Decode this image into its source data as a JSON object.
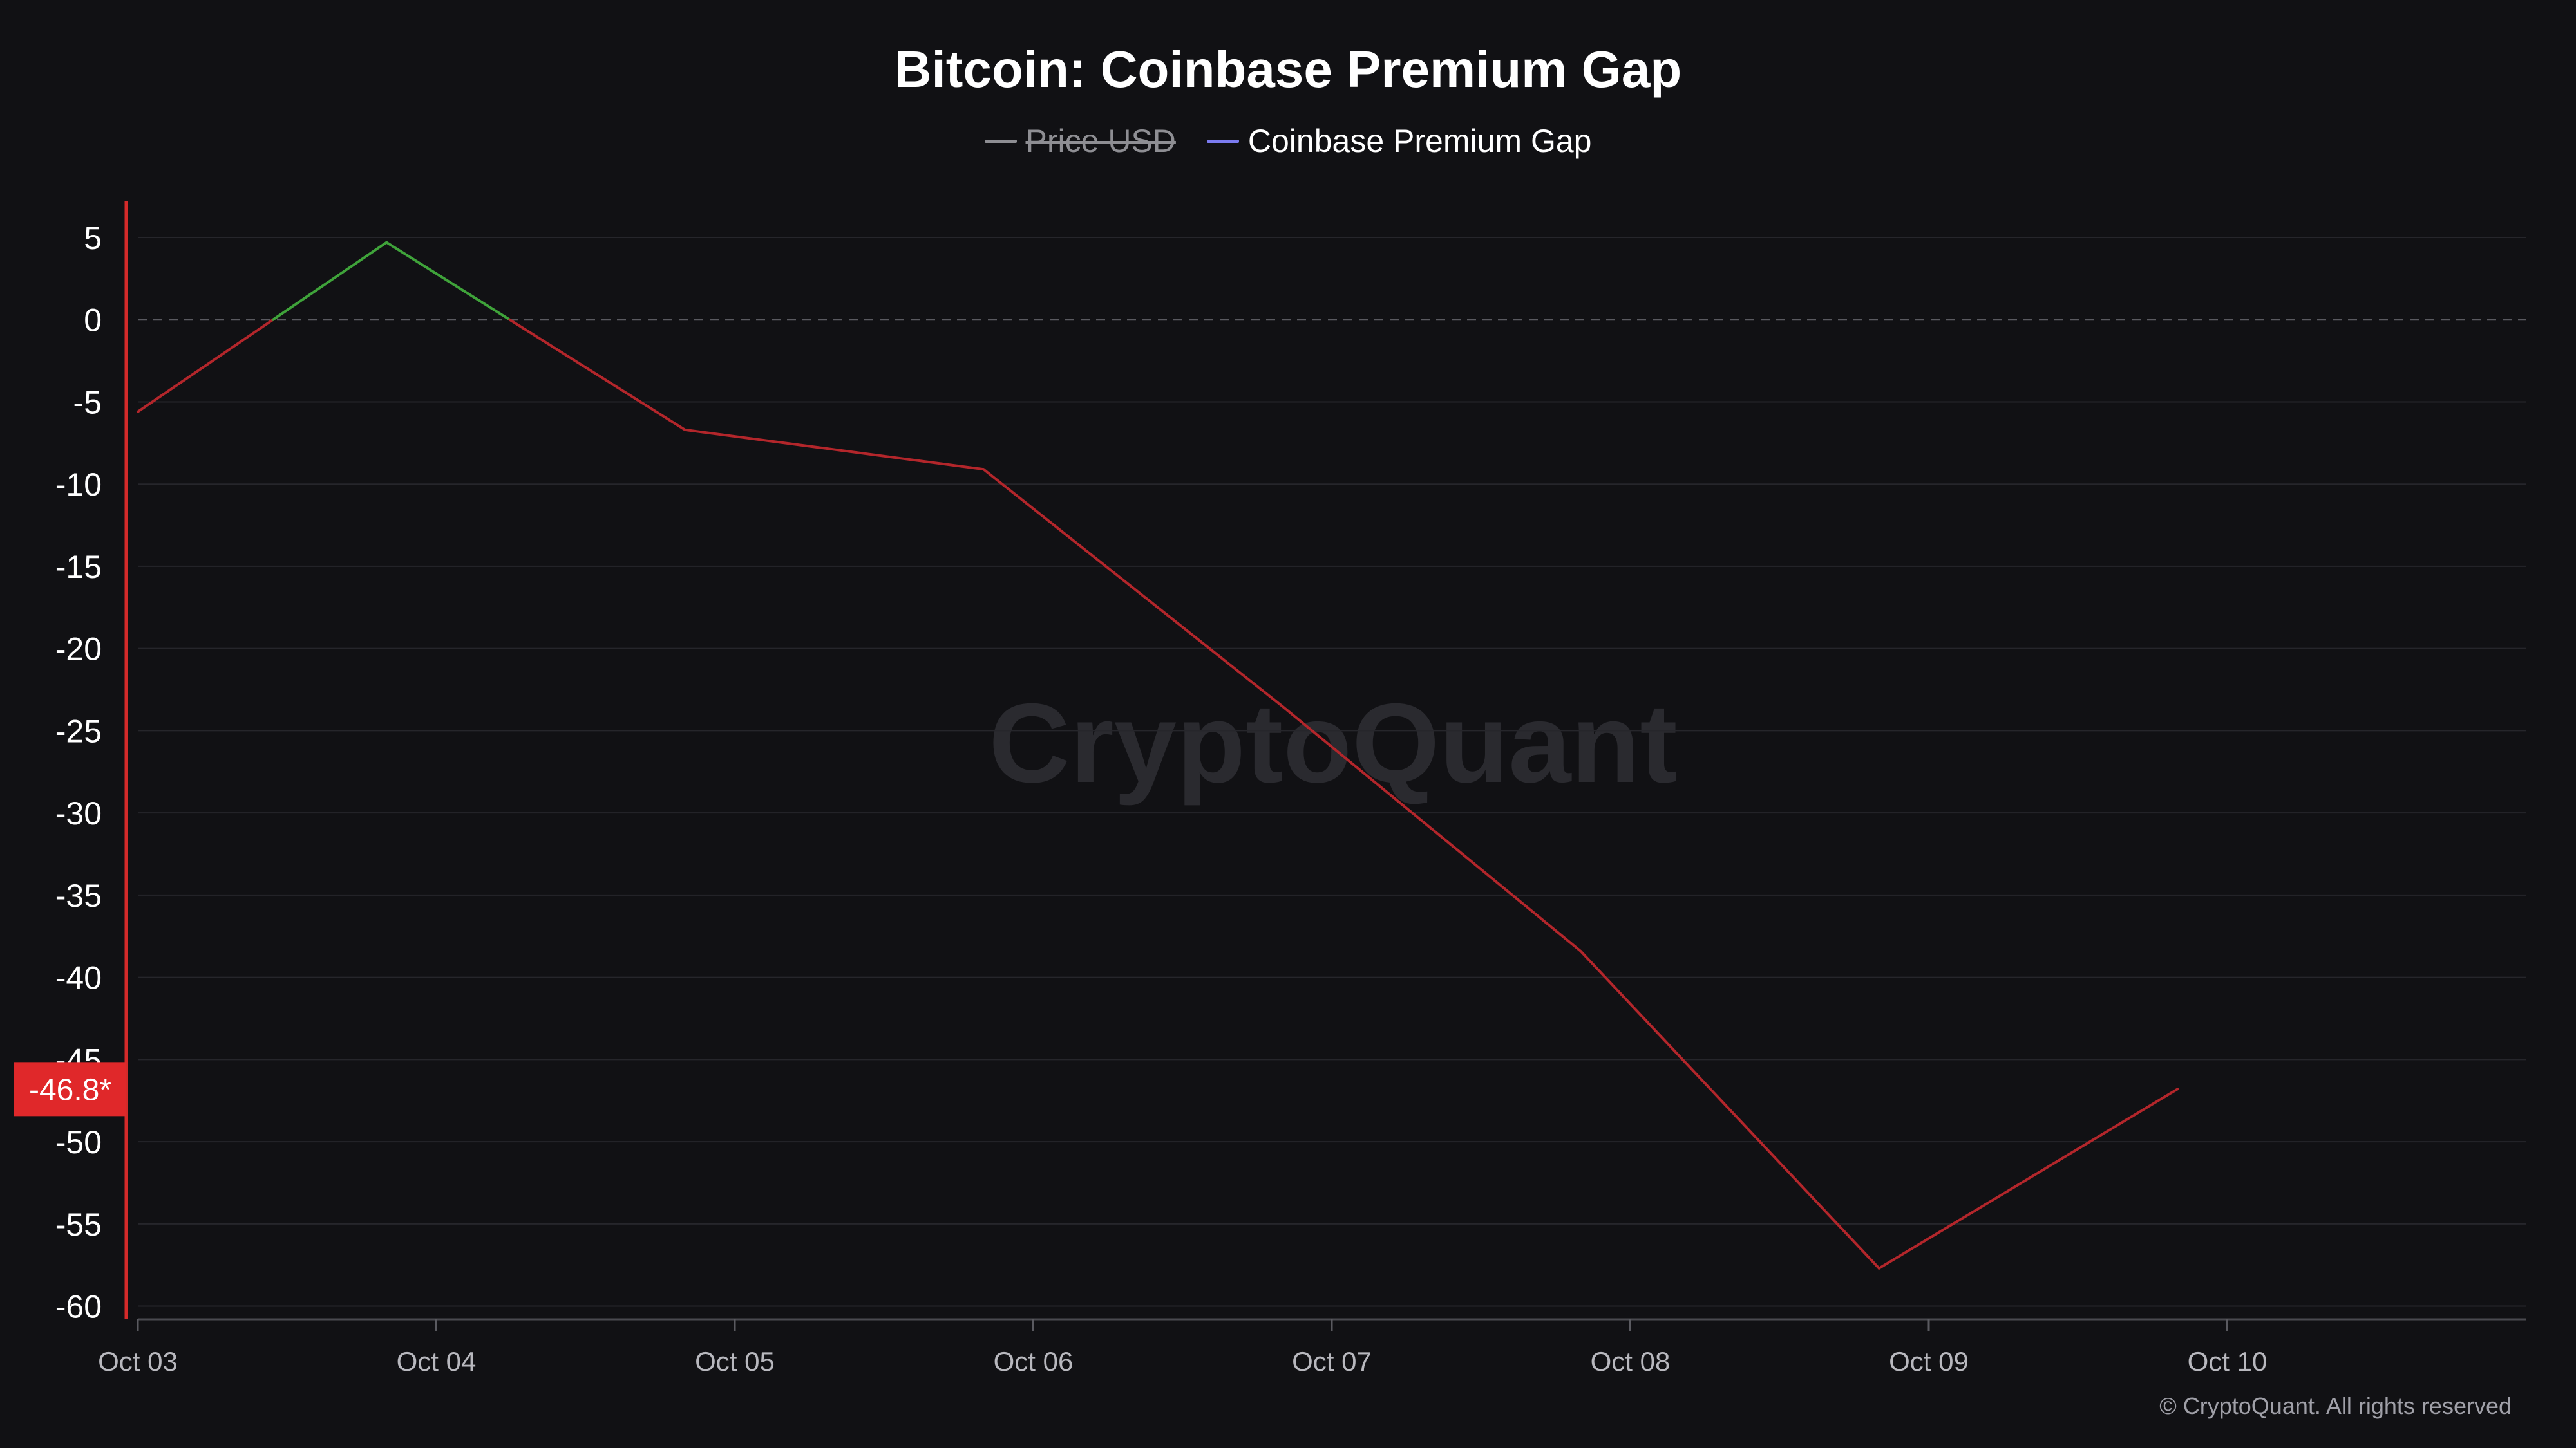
{
  "title": "Bitcoin: Coinbase Premium Gap",
  "legend": [
    {
      "label": "Price USD",
      "color": "#8e8e93",
      "hidden": true
    },
    {
      "label": "Coinbase Premium Gap",
      "color": "#7b7bf0",
      "hidden": false
    }
  ],
  "watermark": "CryptoQuant",
  "footer": "© CryptoQuant. All rights reserved",
  "colors": {
    "background": "#111114",
    "grid": "#26262b",
    "zero_line": "#5a5a60",
    "positive": "#3fa33a",
    "negative": "#b3262b",
    "axis_red": "#d42a2a",
    "label_badge": "#e0282a"
  },
  "chart_data": {
    "type": "line",
    "title": "Bitcoin: Coinbase Premium Gap",
    "xlabel": "",
    "ylabel": "",
    "x_ticks": [
      "Oct 03",
      "Oct 04",
      "Oct 05",
      "Oct 06",
      "Oct 07",
      "Oct 08",
      "Oct 09",
      "Oct 10"
    ],
    "y_ticks": [
      5,
      0,
      -5,
      -10,
      -15,
      -20,
      -25,
      -30,
      -35,
      -40,
      -45,
      -50,
      -55,
      -60
    ],
    "ylim": [
      -60.8,
      7.7
    ],
    "xlim": [
      "2024-10-03T00:00",
      "2024-10-11T00:00"
    ],
    "grid": true,
    "legend_position": "top-center",
    "series": [
      {
        "name": "Coinbase Premium Gap",
        "x": [
          "2024-10-03T00:00",
          "2024-10-03T20:00",
          "2024-10-04T20:00",
          "2024-10-05T20:00",
          "2024-10-06T20:00",
          "2024-10-07T20:00",
          "2024-10-08T20:00",
          "2024-10-09T20:00"
        ],
        "values": [
          -5.6,
          4.7,
          -6.7,
          -9.1,
          -23.5,
          -38.4,
          -57.7,
          -46.8
        ]
      }
    ],
    "current_value_label": "-46.8*"
  }
}
